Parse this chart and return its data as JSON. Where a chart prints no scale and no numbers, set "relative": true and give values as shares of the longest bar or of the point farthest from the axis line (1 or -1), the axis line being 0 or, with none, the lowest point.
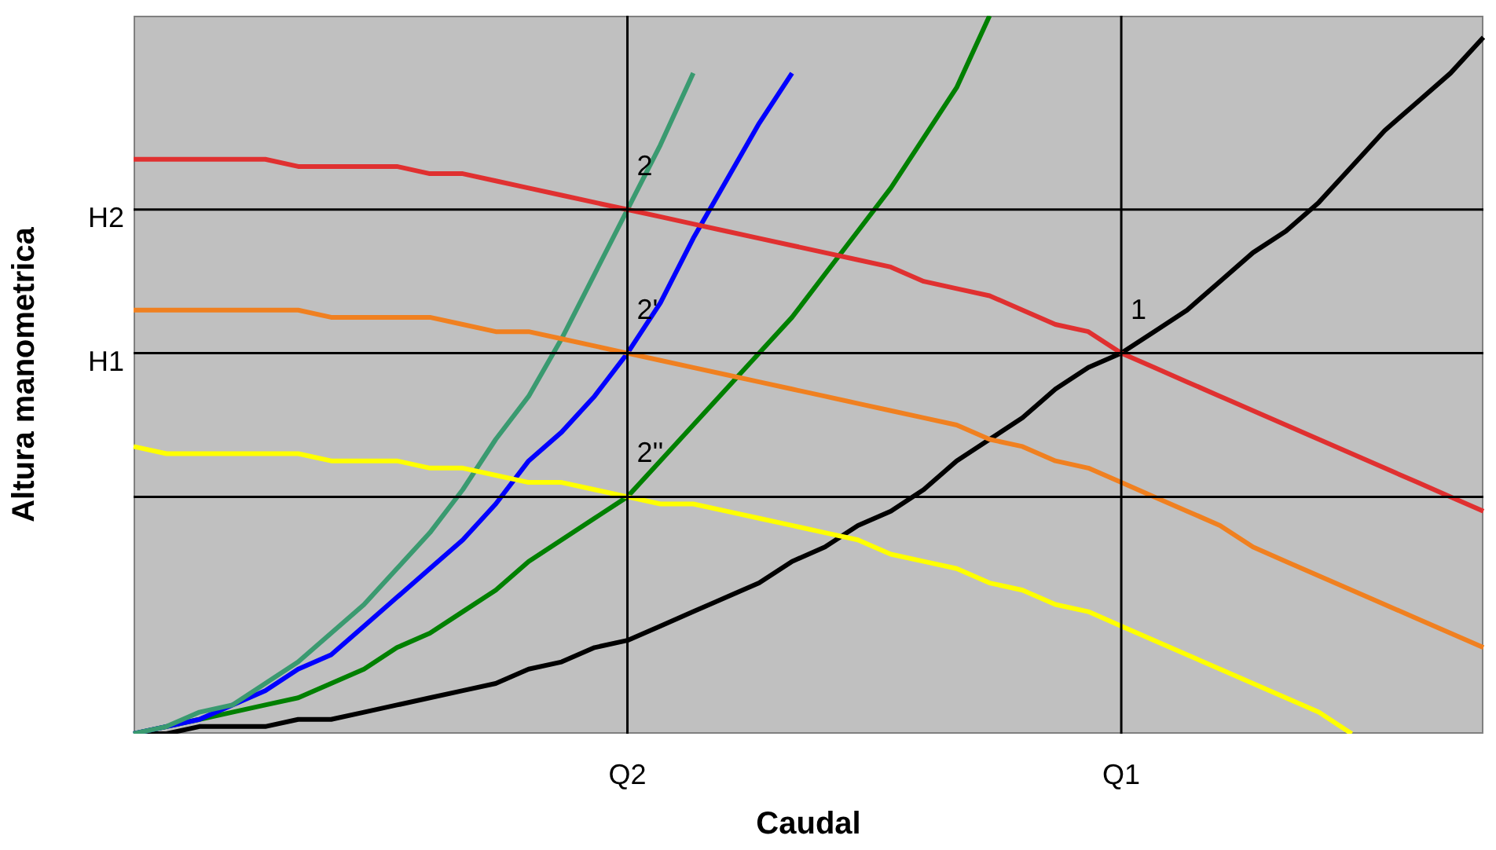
{
  "chart_data": {
    "type": "line",
    "relative": true,
    "xlabel": "Caudal",
    "ylabel": "Altura manometrica",
    "categories": [
      null,
      null,
      null,
      null,
      null,
      null,
      null,
      null,
      null,
      null,
      null,
      null,
      null,
      null,
      null,
      "Q2",
      null,
      null,
      null,
      null,
      null,
      null,
      null,
      null,
      null,
      null,
      null,
      null,
      null,
      null,
      "Q1",
      null,
      null,
      null,
      null,
      null,
      null,
      null,
      null,
      null,
      null,
      null
    ],
    "series": [
      {
        "color": "#e03030",
        "values": [
          0.8,
          0.8,
          0.8,
          0.8,
          0.8,
          0.79,
          0.79,
          0.79,
          0.79,
          0.78,
          0.78,
          0.77,
          0.76,
          0.75,
          0.74,
          0.73,
          0.72,
          0.71,
          0.7,
          0.69,
          0.68,
          0.67,
          0.66,
          0.65,
          0.63,
          0.62,
          0.61,
          0.59,
          0.57,
          0.56,
          0.53,
          0.51,
          0.49,
          0.47,
          0.45,
          0.43,
          0.41,
          0.39,
          0.37,
          0.35,
          0.33,
          0.31
        ]
      },
      {
        "color": "#f08020",
        "values": [
          0.59,
          0.59,
          0.59,
          0.59,
          0.59,
          0.59,
          0.58,
          0.58,
          0.58,
          0.58,
          0.57,
          0.56,
          0.56,
          0.55,
          0.54,
          0.53,
          0.52,
          0.51,
          0.5,
          0.49,
          0.48,
          0.47,
          0.46,
          0.45,
          0.44,
          0.43,
          0.41,
          0.4,
          0.38,
          0.37,
          0.35,
          0.33,
          0.31,
          0.29,
          0.26,
          0.24,
          0.22,
          0.2,
          0.18,
          0.16,
          0.14,
          0.12
        ]
      },
      {
        "color": "#ffff00",
        "values": [
          0.4,
          0.39,
          0.39,
          0.39,
          0.39,
          0.39,
          0.38,
          0.38,
          0.38,
          0.37,
          0.37,
          0.36,
          0.35,
          0.35,
          0.34,
          0.33,
          0.32,
          0.32,
          0.31,
          0.3,
          0.29,
          0.28,
          0.27,
          0.25,
          0.24,
          0.23,
          0.21,
          0.2,
          0.18,
          0.17,
          0.15,
          0.13,
          0.11,
          0.09,
          0.07,
          0.05,
          0.03,
          0,
          null,
          null,
          null,
          null
        ]
      },
      {
        "color": "#3a9a70",
        "values": [
          0,
          0.01,
          0.03,
          0.04,
          0.07,
          0.1,
          0.14,
          0.18,
          0.23,
          0.28,
          0.34,
          0.41,
          0.47,
          0.55,
          0.64,
          0.73,
          0.82,
          0.92,
          null,
          null,
          null,
          null,
          null,
          null,
          null,
          null,
          null,
          null,
          null,
          null,
          null,
          null,
          null,
          null,
          null,
          null,
          null,
          null,
          null,
          null,
          null,
          null
        ]
      },
      {
        "color": "#0000ff",
        "values": [
          0,
          0.01,
          0.02,
          0.04,
          0.06,
          0.09,
          0.11,
          0.15,
          0.19,
          0.23,
          0.27,
          0.32,
          0.38,
          0.42,
          0.47,
          0.53,
          0.6,
          0.69,
          0.77,
          0.85,
          0.92,
          null,
          null,
          null,
          null,
          null,
          null,
          null,
          null,
          null,
          null,
          null,
          null,
          null,
          null,
          null,
          null,
          null,
          null,
          null,
          null,
          null
        ]
      },
      {
        "color": "#008000",
        "values": [
          0,
          0.01,
          0.02,
          0.03,
          0.04,
          0.05,
          0.07,
          0.09,
          0.12,
          0.14,
          0.17,
          0.2,
          0.24,
          0.27,
          0.3,
          0.33,
          0.38,
          0.43,
          0.48,
          0.53,
          0.58,
          0.64,
          0.7,
          0.76,
          0.83,
          0.9,
          1,
          null,
          null,
          null,
          null,
          null,
          null,
          null,
          null,
          null,
          null,
          null,
          null,
          null,
          null,
          null
        ]
      },
      {
        "color": "#000000",
        "values": [
          0,
          0,
          0.01,
          0.01,
          0.01,
          0.02,
          0.02,
          0.03,
          0.04,
          0.05,
          0.06,
          0.07,
          0.09,
          0.1,
          0.12,
          0.13,
          0.15,
          0.17,
          0.19,
          0.21,
          0.24,
          0.26,
          0.29,
          0.31,
          0.34,
          0.38,
          0.41,
          0.44,
          0.48,
          0.51,
          0.53,
          0.56,
          0.59,
          0.63,
          0.67,
          0.7,
          0.74,
          0.79,
          0.84,
          0.88,
          0.92,
          0.97
        ]
      }
    ],
    "ref_lines": [
      {
        "axis": "y",
        "value": 0.73,
        "label": "H2"
      },
      {
        "axis": "y",
        "value": 0.53,
        "label": "H1"
      },
      {
        "axis": "y",
        "value": 0.33
      },
      {
        "axis": "x",
        "value": "Q2"
      },
      {
        "axis": "x",
        "value": "Q1"
      }
    ],
    "annotations": [
      {
        "text": "2",
        "x": "Q2",
        "y": 0.73
      },
      {
        "text": "2'",
        "x": "Q2",
        "y": 0.53
      },
      {
        "text": "2''",
        "x": "Q2",
        "y": 0.33
      },
      {
        "text": "1",
        "x": "Q1",
        "y": 0.53
      }
    ]
  }
}
